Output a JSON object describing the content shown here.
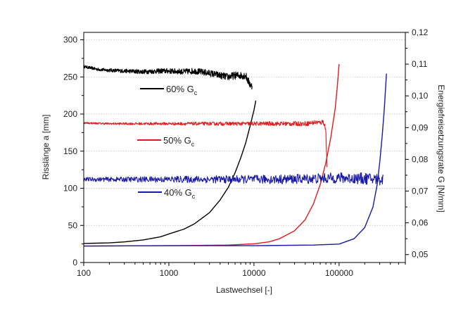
{
  "chart_data": {
    "type": "line",
    "x_scale": "log",
    "xlim": [
      100,
      600000
    ],
    "ylim_left": [
      0,
      310
    ],
    "ylim_right": [
      0.0475,
      0.12
    ],
    "grid": "dotted horizontal lines",
    "xlabel": "Lastwechsel [-]",
    "ylabel_left": "Risslänge a [mm]",
    "ylabel_right": "Energiefreisetzungsrate G [N/mm]",
    "x_ticks": [
      "100",
      "1000",
      "10000",
      "100000"
    ],
    "x_tick_values": [
      100,
      1000,
      10000,
      100000
    ],
    "y_left_ticks": [
      "0",
      "50",
      "100",
      "150",
      "200",
      "250",
      "300"
    ],
    "y_left_tick_values": [
      0,
      50,
      100,
      150,
      200,
      250,
      300
    ],
    "y_right_ticks": [
      "0,05",
      "0,06",
      "0,07",
      "0,08",
      "0,09",
      "0,10",
      "0,11",
      "0,12"
    ],
    "y_right_tick_values": [
      0.05,
      0.06,
      0.07,
      0.08,
      0.09,
      0.1,
      0.11,
      0.12
    ],
    "colors": {
      "60": "#000000",
      "50": "#e31a1c",
      "40": "#1a1aa8"
    },
    "legend": [
      {
        "key": "60",
        "main": "60% G",
        "sub": "c",
        "color": "#000000"
      },
      {
        "key": "50",
        "main": "50% G",
        "sub": "c",
        "color": "#e31a1c"
      },
      {
        "key": "40",
        "main": "40% G",
        "sub": "c",
        "color": "#1a1aa8"
      }
    ],
    "series": [
      {
        "key": "60",
        "axis": "left",
        "color": "#000000",
        "x": [
          100,
          150,
          200,
          300,
          500,
          800,
          1000,
          1500,
          2000,
          3000,
          4000,
          5000,
          6000,
          7000,
          8000,
          8500,
          9000,
          9500
        ],
        "y": [
          264,
          260,
          259,
          258,
          257,
          258,
          258,
          257,
          258,
          255,
          252,
          250,
          252,
          252,
          252,
          245,
          240,
          237
        ],
        "noise": 4
      },
      {
        "key": "60",
        "axis": "right",
        "color": "#000000",
        "x": [
          100,
          200,
          300,
          500,
          800,
          1000,
          1500,
          2000,
          3000,
          4000,
          5000,
          6000,
          7000,
          8000,
          9000,
          10000,
          10500
        ],
        "y": [
          0.0535,
          0.0537,
          0.054,
          0.0546,
          0.0556,
          0.0565,
          0.058,
          0.0597,
          0.0632,
          0.0672,
          0.0712,
          0.0758,
          0.0805,
          0.0852,
          0.0905,
          0.0955,
          0.0985
        ]
      },
      {
        "key": "50",
        "axis": "left",
        "color": "#e31a1c",
        "x": [
          100,
          200,
          500,
          1000,
          2000,
          5000,
          10000,
          20000,
          40000,
          55000,
          60000,
          65000,
          68000,
          70000,
          71000,
          72000
        ],
        "y": [
          188,
          187,
          187,
          187,
          187,
          187,
          187,
          187,
          187,
          189,
          188,
          190,
          185,
          175,
          150,
          130
        ],
        "noise": 2.5
      },
      {
        "key": "50",
        "axis": "right",
        "color": "#e31a1c",
        "x": [
          100,
          1000,
          5000,
          10000,
          15000,
          20000,
          30000,
          40000,
          50000,
          60000,
          70000,
          80000,
          90000,
          95000,
          100000
        ],
        "y": [
          0.0527,
          0.0528,
          0.053,
          0.0534,
          0.054,
          0.055,
          0.0575,
          0.061,
          0.066,
          0.072,
          0.079,
          0.087,
          0.096,
          0.1025,
          0.11
        ]
      },
      {
        "key": "40",
        "axis": "left",
        "color": "#1a1aa8",
        "x": [
          100,
          150,
          200,
          300,
          500,
          1000,
          2000,
          5000,
          10000,
          20000,
          50000,
          100000,
          200000,
          300000,
          330000
        ],
        "y": [
          112,
          112,
          112,
          112,
          112,
          112,
          112,
          112,
          112,
          112,
          113,
          114,
          113,
          112,
          112
        ],
        "noise": 6
      },
      {
        "key": "40",
        "axis": "right",
        "color": "#1a1aa8",
        "x": [
          100,
          1000,
          10000,
          50000,
          100000,
          150000,
          200000,
          250000,
          280000,
          300000,
          320000,
          340000,
          360000
        ],
        "y": [
          0.0527,
          0.0528,
          0.0528,
          0.053,
          0.0533,
          0.055,
          0.0585,
          0.065,
          0.072,
          0.079,
          0.087,
          0.096,
          0.107
        ]
      }
    ]
  }
}
